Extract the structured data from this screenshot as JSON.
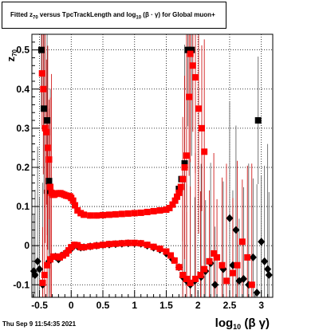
{
  "title": {
    "prefix": "Fitted  z",
    "sub1": "70",
    "middle": "  versus TpcTrackLength and log",
    "sub2": "10",
    "suffix": " (β · γ) for Global muon+"
  },
  "footer": "Thu Sep  9 11:54:35 2021",
  "colors": {
    "red": "#ff0000",
    "black": "#000000",
    "errbar": "#cc0000",
    "grid": "#000000"
  },
  "chart_data": {
    "type": "scatter",
    "xlabel": {
      "main": "log",
      "sub": "10",
      "rest": "(β γ)"
    },
    "ylabel": {
      "main": "z",
      "sub": "70"
    },
    "xlim": [
      -0.62,
      3.18
    ],
    "ylim": [
      -0.132,
      0.54
    ],
    "xticks": [
      -0.5,
      0,
      0.5,
      1,
      1.5,
      2,
      2.5,
      3
    ],
    "xtick_labels": [
      "-0.5",
      "0",
      "0.5",
      "1",
      "1.5",
      "2",
      "2.5",
      "3"
    ],
    "yticks": [
      -0.1,
      0,
      0.1,
      0.2,
      0.3,
      0.4,
      0.5
    ],
    "ytick_labels": [
      "-0.1",
      "0",
      "0.1",
      "0.2",
      "0.3",
      "0.4",
      "0.5"
    ],
    "grid": true,
    "series": [
      {
        "color": "#000000",
        "marker": "square",
        "points": [
          [
            -0.47,
            0.5
          ],
          [
            -0.43,
            0.35
          ],
          [
            -0.38,
            0.32
          ],
          [
            -0.35,
            0.165
          ],
          [
            -0.33,
            0.14
          ],
          [
            1.7,
            0.145
          ],
          [
            1.74,
            0.17
          ],
          [
            1.79,
            0.21
          ],
          [
            1.84,
            0.5
          ],
          [
            1.9,
            0.5
          ],
          [
            2.95,
            0.32
          ]
        ]
      },
      {
        "color": "#000000",
        "marker": "diamond",
        "points": [
          [
            -0.59,
            -0.065
          ],
          [
            -0.57,
            -0.075
          ],
          [
            -0.53,
            -0.04
          ],
          [
            -0.5,
            -0.06
          ],
          [
            -0.45,
            -0.1
          ],
          [
            -0.35,
            -0.04
          ],
          [
            -0.3,
            -0.03
          ],
          [
            -0.25,
            -0.028
          ],
          [
            -0.2,
            -0.035
          ],
          [
            -0.15,
            -0.025
          ],
          [
            -0.1,
            -0.02
          ],
          [
            -0.05,
            -0.015
          ],
          [
            0.0,
            -0.008
          ],
          [
            0.05,
            0.0
          ],
          [
            0.1,
            -0.002
          ],
          [
            0.15,
            -0.005
          ],
          [
            0.2,
            -0.004
          ],
          [
            0.3,
            -0.002
          ],
          [
            0.4,
            0.0
          ],
          [
            0.5,
            0.002
          ],
          [
            0.6,
            0.003
          ],
          [
            0.7,
            0.004
          ],
          [
            0.8,
            0.005
          ],
          [
            0.9,
            0.006
          ],
          [
            1.0,
            0.006
          ],
          [
            1.1,
            0.005
          ],
          [
            1.2,
            0.0
          ],
          [
            1.3,
            -0.005
          ],
          [
            1.4,
            -0.01
          ],
          [
            1.5,
            -0.02
          ],
          [
            1.6,
            -0.035
          ],
          [
            1.7,
            -0.055
          ],
          [
            1.76,
            -0.08
          ],
          [
            1.82,
            -0.09
          ],
          [
            1.88,
            -0.1
          ],
          [
            1.95,
            -0.09
          ],
          [
            2.05,
            -0.08
          ],
          [
            2.12,
            -0.065
          ],
          [
            2.2,
            -0.045
          ],
          [
            2.27,
            -0.1
          ],
          [
            2.4,
            -0.06
          ],
          [
            2.5,
            0.07
          ],
          [
            2.55,
            -0.05
          ],
          [
            2.6,
            0.04
          ],
          [
            2.65,
            -0.09
          ],
          [
            2.72,
            -0.085
          ],
          [
            2.8,
            -0.1
          ],
          [
            2.87,
            -0.03
          ],
          [
            2.93,
            -0.12
          ],
          [
            3.0,
            0.01
          ],
          [
            3.05,
            -0.04
          ],
          [
            3.1,
            -0.06
          ],
          [
            3.12,
            -0.075
          ]
        ]
      },
      {
        "color": "#ff0000",
        "marker": "square",
        "points": [
          [
            -0.46,
            0.44
          ],
          [
            -0.44,
            0.4
          ],
          [
            -0.41,
            0.3
          ],
          [
            -0.39,
            0.29
          ],
          [
            -0.37,
            0.25
          ],
          [
            -0.35,
            0.22
          ],
          [
            -0.33,
            0.15
          ],
          [
            -0.31,
            0.135
          ],
          [
            -0.29,
            0.13
          ],
          [
            -0.27,
            0.13
          ],
          [
            -0.25,
            0.132
          ],
          [
            -0.22,
            0.133
          ],
          [
            -0.2,
            0.134
          ],
          [
            -0.17,
            0.134
          ],
          [
            -0.14,
            0.132
          ],
          [
            -0.11,
            0.13
          ],
          [
            -0.08,
            0.128
          ],
          [
            -0.05,
            0.127
          ],
          [
            -0.02,
            0.126
          ],
          [
            0.0,
            0.122
          ],
          [
            0.03,
            0.115
          ],
          [
            0.06,
            0.103
          ],
          [
            0.1,
            0.09
          ],
          [
            0.15,
            0.083
          ],
          [
            0.2,
            0.079
          ],
          [
            0.3,
            0.077
          ],
          [
            0.4,
            0.077
          ],
          [
            0.5,
            0.078
          ],
          [
            0.6,
            0.079
          ],
          [
            0.7,
            0.08
          ],
          [
            0.8,
            0.081
          ],
          [
            0.9,
            0.082
          ],
          [
            1.0,
            0.083
          ],
          [
            1.1,
            0.084
          ],
          [
            1.2,
            0.086
          ],
          [
            1.3,
            0.088
          ],
          [
            1.4,
            0.09
          ],
          [
            1.5,
            0.092
          ],
          [
            1.55,
            0.096
          ],
          [
            1.6,
            0.105
          ],
          [
            1.64,
            0.115
          ],
          [
            1.67,
            0.125
          ],
          [
            1.7,
            0.135
          ],
          [
            1.73,
            0.15
          ],
          [
            1.76,
            0.17
          ],
          [
            1.79,
            0.2
          ],
          [
            1.82,
            0.23
          ],
          [
            1.86,
            0.38
          ],
          [
            1.88,
            0.49
          ],
          [
            1.92,
            0.46
          ],
          [
            1.96,
            0.43
          ],
          [
            2.01,
            0.35
          ],
          [
            2.06,
            0.3
          ],
          [
            2.1,
            0.24
          ]
        ]
      },
      {
        "color": "#ff0000",
        "marker": "square",
        "points": [
          [
            -0.45,
            -0.095
          ],
          [
            -0.42,
            -0.075
          ],
          [
            -0.38,
            -0.05
          ],
          [
            -0.33,
            -0.035
          ],
          [
            -0.28,
            -0.028
          ],
          [
            -0.23,
            -0.028
          ],
          [
            -0.18,
            -0.03
          ],
          [
            -0.13,
            -0.025
          ],
          [
            -0.08,
            -0.02
          ],
          [
            -0.04,
            -0.012
          ],
          [
            0.0,
            -0.004
          ],
          [
            0.05,
            0.002
          ],
          [
            0.1,
            0.001
          ],
          [
            0.15,
            -0.004
          ],
          [
            0.2,
            -0.004
          ],
          [
            0.3,
            -0.002
          ],
          [
            0.4,
            0.0
          ],
          [
            0.5,
            0.002
          ],
          [
            0.6,
            0.004
          ],
          [
            0.7,
            0.005
          ],
          [
            0.8,
            0.006
          ],
          [
            0.9,
            0.007
          ],
          [
            1.0,
            0.007
          ],
          [
            1.1,
            0.006
          ],
          [
            1.2,
            0.002
          ],
          [
            1.3,
            -0.003
          ],
          [
            1.4,
            -0.008
          ],
          [
            1.5,
            -0.015
          ],
          [
            1.57,
            -0.025
          ],
          [
            1.63,
            -0.038
          ],
          [
            1.7,
            -0.055
          ],
          [
            1.76,
            -0.075
          ],
          [
            1.82,
            -0.085
          ],
          [
            1.88,
            -0.095
          ],
          [
            1.96,
            -0.085
          ],
          [
            2.04,
            -0.075
          ],
          [
            2.1,
            -0.06
          ],
          [
            2.18,
            -0.04
          ],
          [
            2.25,
            -0.02
          ],
          [
            2.3,
            -0.03
          ],
          [
            2.38,
            -0.05
          ],
          [
            2.45,
            -0.09
          ],
          [
            2.55,
            -0.07
          ],
          [
            2.62,
            -0.05
          ],
          [
            2.7,
            0.01
          ],
          [
            2.78,
            -0.03
          ],
          [
            2.85,
            -0.1
          ]
        ]
      }
    ]
  }
}
